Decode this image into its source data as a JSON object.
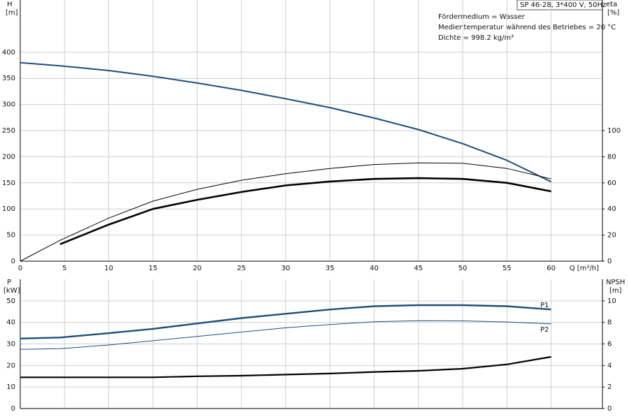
{
  "chart_data": [
    {
      "type": "line",
      "title": "SP 46-28, 3*400 V, 50Hz",
      "annotations": [
        "Fördermedium = Wasser",
        "Medientemperatur während des Betriebes = 20 °C",
        "Dichte = 998.2 kg/m³"
      ],
      "y_label": [
        "H",
        "[m]"
      ],
      "y2_label": [
        "eta",
        "[%]"
      ],
      "x_label": "Q [m³/h]",
      "xtick_labels": true,
      "grid": true,
      "x": [
        0,
        4.5,
        10,
        15,
        20,
        25,
        30,
        35,
        40,
        45,
        50,
        55,
        60
      ],
      "xlim": [
        0,
        65.8
      ],
      "xticks": [
        0,
        5,
        10,
        15,
        20,
        25,
        30,
        35,
        40,
        45,
        50,
        55,
        60
      ],
      "ylim": [
        0,
        500
      ],
      "yticks": [
        0,
        50,
        100,
        150,
        200,
        250,
        300,
        350,
        400
      ],
      "y2lim": [
        0,
        200
      ],
      "y2ticks": [
        0,
        20,
        40,
        60,
        80,
        100
      ],
      "series": [
        {
          "color": "#1b4f7e",
          "values": [
            380,
            374,
            365,
            354,
            341,
            327,
            311,
            294,
            274,
            252,
            225,
            193,
            152
          ]
        },
        {
          "color": "#000000",
          "axis": "y2",
          "values": [
            0,
            16,
            33,
            46,
            55,
            62,
            67,
            71,
            74,
            75.3,
            75,
            71,
            63
          ]
        },
        {
          "color": "#000000",
          "axis": "y2",
          "values": [
            null,
            13,
            28,
            40,
            47,
            53,
            58,
            61,
            63,
            63.6,
            63,
            60,
            53.5
          ]
        }
      ]
    },
    {
      "type": "line",
      "y_label": [
        "P",
        "[kW]"
      ],
      "y2_label": [
        "NPSH",
        "[m]"
      ],
      "xtick_labels": false,
      "grid": true,
      "x": [
        0,
        4.5,
        10,
        15,
        20,
        25,
        30,
        35,
        40,
        45,
        50,
        55,
        60
      ],
      "xlim": [
        0,
        65.8
      ],
      "xticks": [
        0,
        5,
        10,
        15,
        20,
        25,
        30,
        35,
        40,
        45,
        50,
        55,
        60
      ],
      "ylim": [
        0,
        60
      ],
      "yticks": [
        0,
        10,
        20,
        30,
        40,
        50
      ],
      "y2lim": [
        0,
        12
      ],
      "y2ticks": [
        0,
        2,
        4,
        6,
        8,
        10
      ],
      "series": [
        {
          "name": "P1",
          "color": "#1b4f7e",
          "values": [
            32.5,
            33,
            35,
            37,
            39.5,
            42,
            44,
            46,
            47.5,
            48,
            48,
            47.5,
            46
          ]
        },
        {
          "name": "P2",
          "color": "#1b4f7e",
          "values": [
            27.5,
            27.8,
            29.5,
            31.5,
            33.5,
            35.5,
            37.5,
            39,
            40.3,
            40.8,
            40.7,
            40.2,
            39.3
          ]
        },
        {
          "color": "#000000",
          "axis": "y2",
          "values": [
            2.9,
            2.9,
            2.9,
            2.9,
            3.0,
            3.05,
            3.15,
            3.25,
            3.4,
            3.5,
            3.7,
            4.1,
            4.8
          ]
        }
      ]
    }
  ]
}
